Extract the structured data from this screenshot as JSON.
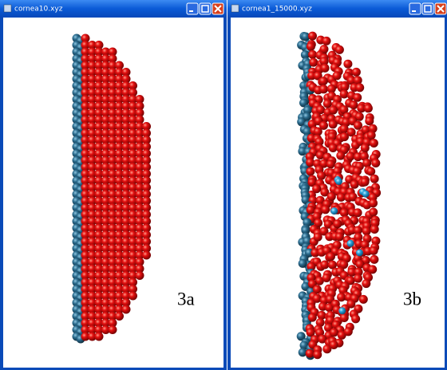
{
  "windows": [
    {
      "title": "cornea10.xyz",
      "label": "3a"
    },
    {
      "title": "cornea1_15000.xyz",
      "label": "3b"
    }
  ]
}
